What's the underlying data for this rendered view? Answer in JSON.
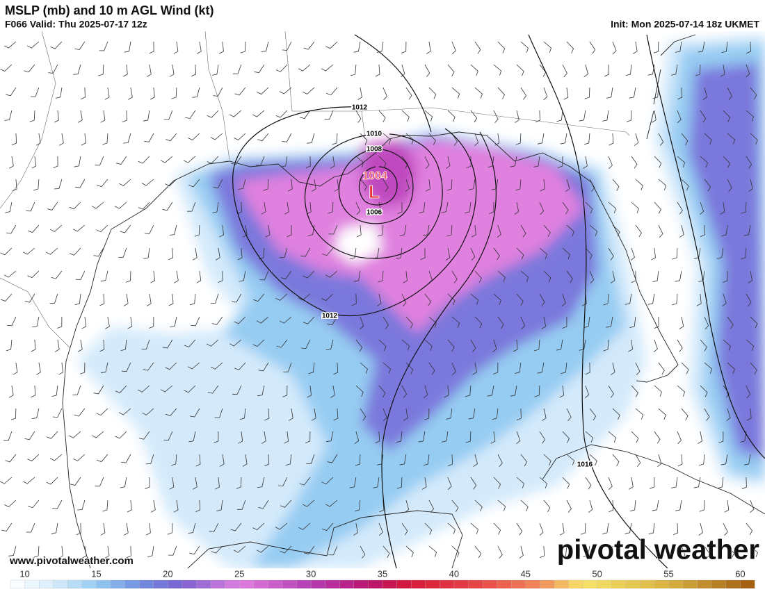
{
  "header": {
    "title": "MSLP (mb) and 10 m AGL Wind (kt)",
    "valid": "F066 Valid: Thu 2025-07-17 12z",
    "init": "Init: Mon 2025-07-14 18z UKMET"
  },
  "map": {
    "isobar_labels": [
      1012,
      1010,
      1008,
      1004,
      1006,
      1012,
      1016
    ],
    "low_label": "L"
  },
  "colorbar": {
    "range": [
      9,
      61
    ],
    "ticks": [
      10,
      15,
      20,
      25,
      30,
      35,
      40,
      45,
      50,
      55,
      60
    ],
    "stops": [
      {
        "value": 9,
        "color": "#ffffff"
      },
      {
        "value": 12,
        "color": "#d8ecfa"
      },
      {
        "value": 15,
        "color": "#96ccf2"
      },
      {
        "value": 18,
        "color": "#6f8fe0"
      },
      {
        "value": 21,
        "color": "#7a60d0"
      },
      {
        "value": 25,
        "color": "#e07fe0"
      },
      {
        "value": 30,
        "color": "#b43cb4"
      },
      {
        "value": 34,
        "color": "#b81470"
      },
      {
        "value": 37,
        "color": "#d81838"
      },
      {
        "value": 42,
        "color": "#e84a48"
      },
      {
        "value": 46,
        "color": "#f08a5a"
      },
      {
        "value": 49,
        "color": "#f8e46a"
      },
      {
        "value": 55,
        "color": "#d8b244"
      },
      {
        "value": 61,
        "color": "#a0580c"
      }
    ]
  },
  "watermark": "pivotal weather",
  "website": "www.pivotalweather.com"
}
